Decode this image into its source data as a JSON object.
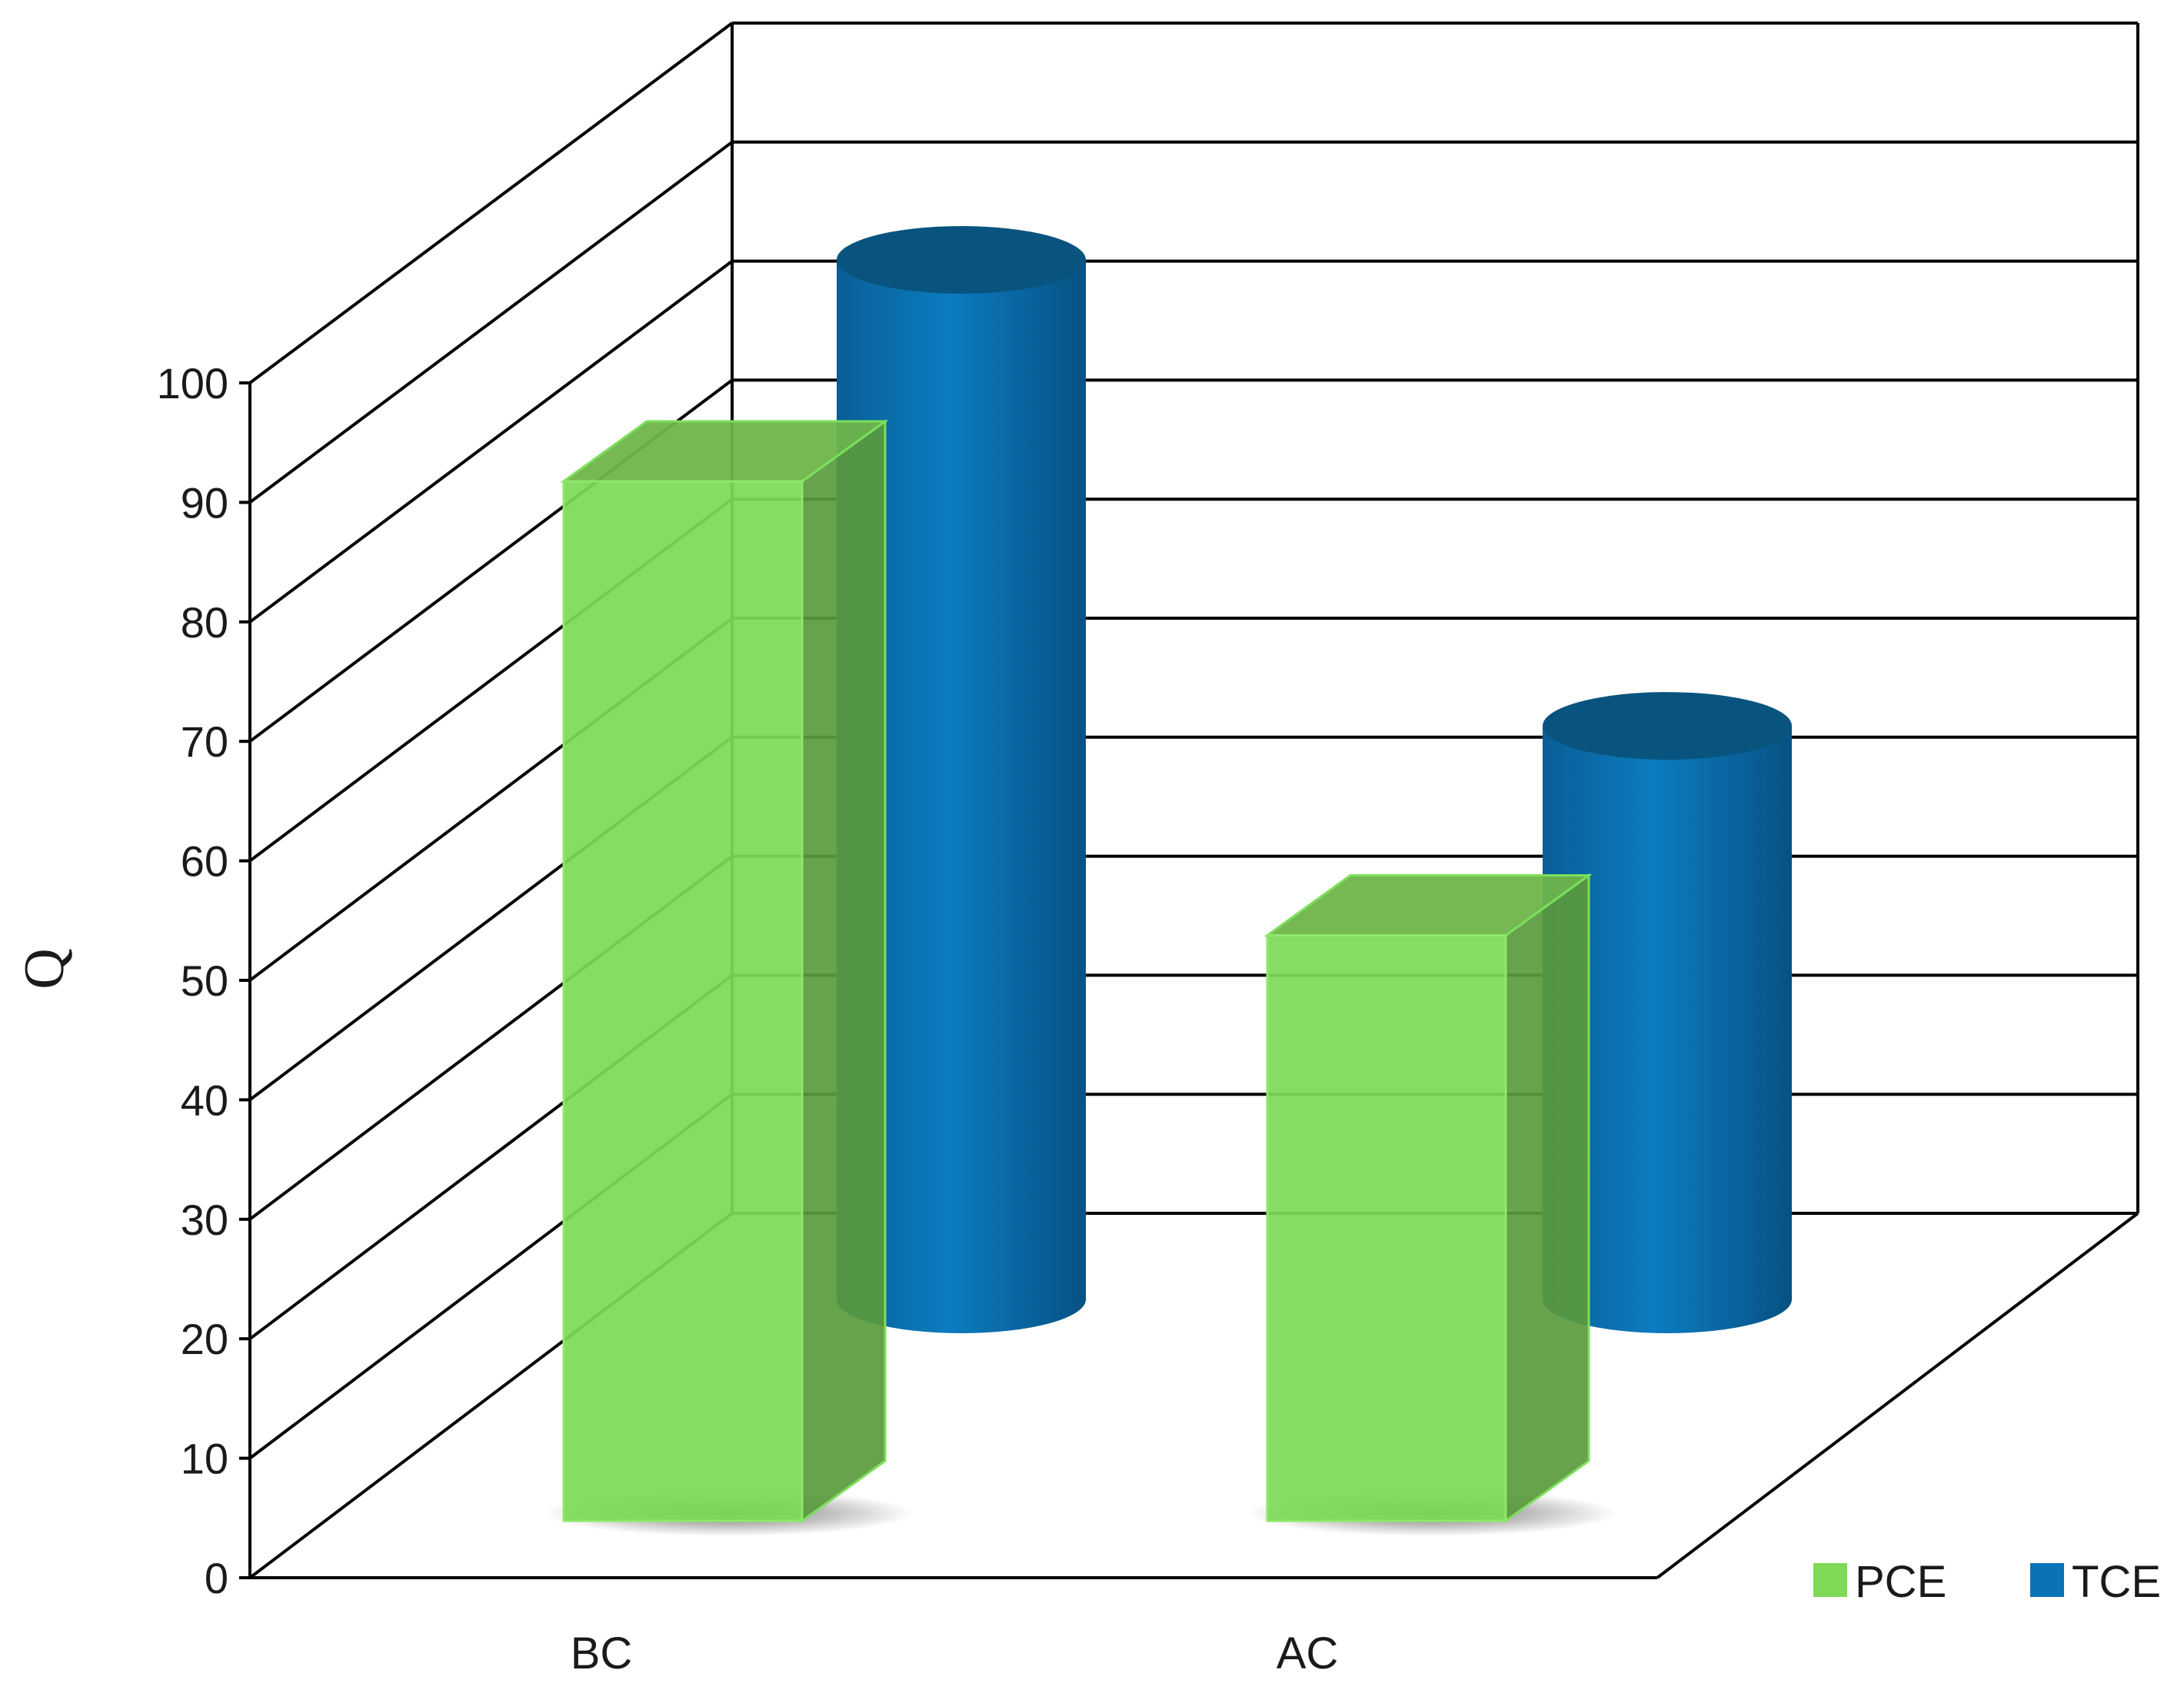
{
  "chart_data": {
    "type": "bar",
    "subtype": "3d-clustered",
    "title": "",
    "xlabel": "",
    "ylabel": "Q",
    "ylim": [
      0,
      100
    ],
    "yticks": [
      0,
      10,
      20,
      30,
      40,
      50,
      60,
      70,
      80,
      90,
      100
    ],
    "categories": [
      "BC",
      "AC"
    ],
    "series": [
      {
        "name": "PCE",
        "shape": "box",
        "values": [
          87,
          49
        ]
      },
      {
        "name": "TCE",
        "shape": "cylinder",
        "values": [
          87,
          48
        ]
      }
    ],
    "grid": true,
    "legend_position": "bottom-right",
    "colors": {
      "PCE": "#7ED957",
      "PCE_side": "#5A9A3E",
      "PCE_top": "#6FB54A",
      "TCE": "#0A73B6",
      "TCE_dark": "#08547F",
      "axis": "#000000"
    }
  }
}
